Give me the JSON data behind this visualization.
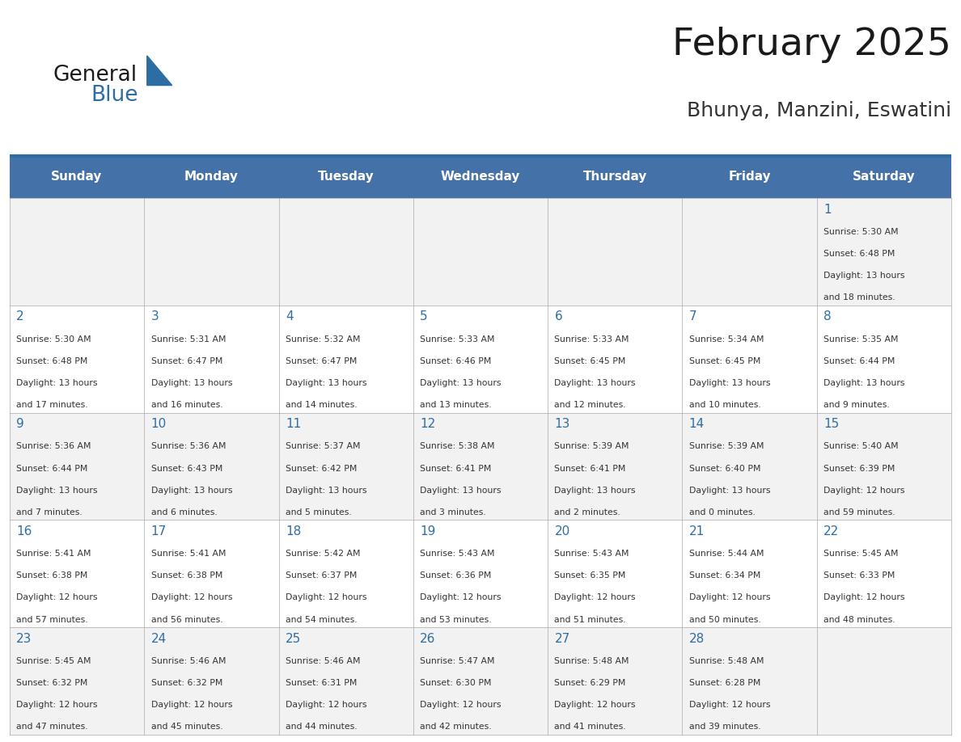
{
  "title": "February 2025",
  "subtitle": "Bhunya, Manzini, Eswatini",
  "header_bg_color": "#4472a8",
  "header_text_color": "#ffffff",
  "cell_bg_color_odd": "#f2f2f2",
  "cell_bg_color_even": "#ffffff",
  "day_headers": [
    "Sunday",
    "Monday",
    "Tuesday",
    "Wednesday",
    "Thursday",
    "Friday",
    "Saturday"
  ],
  "title_color": "#1a1a1a",
  "subtitle_color": "#333333",
  "day_num_color": "#2e6da4",
  "cell_text_color": "#333333",
  "grid_color": "#aaaaaa",
  "header_line_color": "#2e6da4",
  "days": [
    {
      "day": 1,
      "col": 6,
      "row": 0,
      "sunrise": "5:30 AM",
      "sunset": "6:48 PM",
      "daylight": "13 hours and 18 minutes."
    },
    {
      "day": 2,
      "col": 0,
      "row": 1,
      "sunrise": "5:30 AM",
      "sunset": "6:48 PM",
      "daylight": "13 hours and 17 minutes."
    },
    {
      "day": 3,
      "col": 1,
      "row": 1,
      "sunrise": "5:31 AM",
      "sunset": "6:47 PM",
      "daylight": "13 hours and 16 minutes."
    },
    {
      "day": 4,
      "col": 2,
      "row": 1,
      "sunrise": "5:32 AM",
      "sunset": "6:47 PM",
      "daylight": "13 hours and 14 minutes."
    },
    {
      "day": 5,
      "col": 3,
      "row": 1,
      "sunrise": "5:33 AM",
      "sunset": "6:46 PM",
      "daylight": "13 hours and 13 minutes."
    },
    {
      "day": 6,
      "col": 4,
      "row": 1,
      "sunrise": "5:33 AM",
      "sunset": "6:45 PM",
      "daylight": "13 hours and 12 minutes."
    },
    {
      "day": 7,
      "col": 5,
      "row": 1,
      "sunrise": "5:34 AM",
      "sunset": "6:45 PM",
      "daylight": "13 hours and 10 minutes."
    },
    {
      "day": 8,
      "col": 6,
      "row": 1,
      "sunrise": "5:35 AM",
      "sunset": "6:44 PM",
      "daylight": "13 hours and 9 minutes."
    },
    {
      "day": 9,
      "col": 0,
      "row": 2,
      "sunrise": "5:36 AM",
      "sunset": "6:44 PM",
      "daylight": "13 hours and 7 minutes."
    },
    {
      "day": 10,
      "col": 1,
      "row": 2,
      "sunrise": "5:36 AM",
      "sunset": "6:43 PM",
      "daylight": "13 hours and 6 minutes."
    },
    {
      "day": 11,
      "col": 2,
      "row": 2,
      "sunrise": "5:37 AM",
      "sunset": "6:42 PM",
      "daylight": "13 hours and 5 minutes."
    },
    {
      "day": 12,
      "col": 3,
      "row": 2,
      "sunrise": "5:38 AM",
      "sunset": "6:41 PM",
      "daylight": "13 hours and 3 minutes."
    },
    {
      "day": 13,
      "col": 4,
      "row": 2,
      "sunrise": "5:39 AM",
      "sunset": "6:41 PM",
      "daylight": "13 hours and 2 minutes."
    },
    {
      "day": 14,
      "col": 5,
      "row": 2,
      "sunrise": "5:39 AM",
      "sunset": "6:40 PM",
      "daylight": "13 hours and 0 minutes."
    },
    {
      "day": 15,
      "col": 6,
      "row": 2,
      "sunrise": "5:40 AM",
      "sunset": "6:39 PM",
      "daylight": "12 hours and 59 minutes."
    },
    {
      "day": 16,
      "col": 0,
      "row": 3,
      "sunrise": "5:41 AM",
      "sunset": "6:38 PM",
      "daylight": "12 hours and 57 minutes."
    },
    {
      "day": 17,
      "col": 1,
      "row": 3,
      "sunrise": "5:41 AM",
      "sunset": "6:38 PM",
      "daylight": "12 hours and 56 minutes."
    },
    {
      "day": 18,
      "col": 2,
      "row": 3,
      "sunrise": "5:42 AM",
      "sunset": "6:37 PM",
      "daylight": "12 hours and 54 minutes."
    },
    {
      "day": 19,
      "col": 3,
      "row": 3,
      "sunrise": "5:43 AM",
      "sunset": "6:36 PM",
      "daylight": "12 hours and 53 minutes."
    },
    {
      "day": 20,
      "col": 4,
      "row": 3,
      "sunrise": "5:43 AM",
      "sunset": "6:35 PM",
      "daylight": "12 hours and 51 minutes."
    },
    {
      "day": 21,
      "col": 5,
      "row": 3,
      "sunrise": "5:44 AM",
      "sunset": "6:34 PM",
      "daylight": "12 hours and 50 minutes."
    },
    {
      "day": 22,
      "col": 6,
      "row": 3,
      "sunrise": "5:45 AM",
      "sunset": "6:33 PM",
      "daylight": "12 hours and 48 minutes."
    },
    {
      "day": 23,
      "col": 0,
      "row": 4,
      "sunrise": "5:45 AM",
      "sunset": "6:32 PM",
      "daylight": "12 hours and 47 minutes."
    },
    {
      "day": 24,
      "col": 1,
      "row": 4,
      "sunrise": "5:46 AM",
      "sunset": "6:32 PM",
      "daylight": "12 hours and 45 minutes."
    },
    {
      "day": 25,
      "col": 2,
      "row": 4,
      "sunrise": "5:46 AM",
      "sunset": "6:31 PM",
      "daylight": "12 hours and 44 minutes."
    },
    {
      "day": 26,
      "col": 3,
      "row": 4,
      "sunrise": "5:47 AM",
      "sunset": "6:30 PM",
      "daylight": "12 hours and 42 minutes."
    },
    {
      "day": 27,
      "col": 4,
      "row": 4,
      "sunrise": "5:48 AM",
      "sunset": "6:29 PM",
      "daylight": "12 hours and 41 minutes."
    },
    {
      "day": 28,
      "col": 5,
      "row": 4,
      "sunrise": "5:48 AM",
      "sunset": "6:28 PM",
      "daylight": "12 hours and 39 minutes."
    }
  ],
  "num_rows": 5,
  "logo_text1": "General",
  "logo_text2": "Blue",
  "logo_triangle_color": "#2e6da4"
}
